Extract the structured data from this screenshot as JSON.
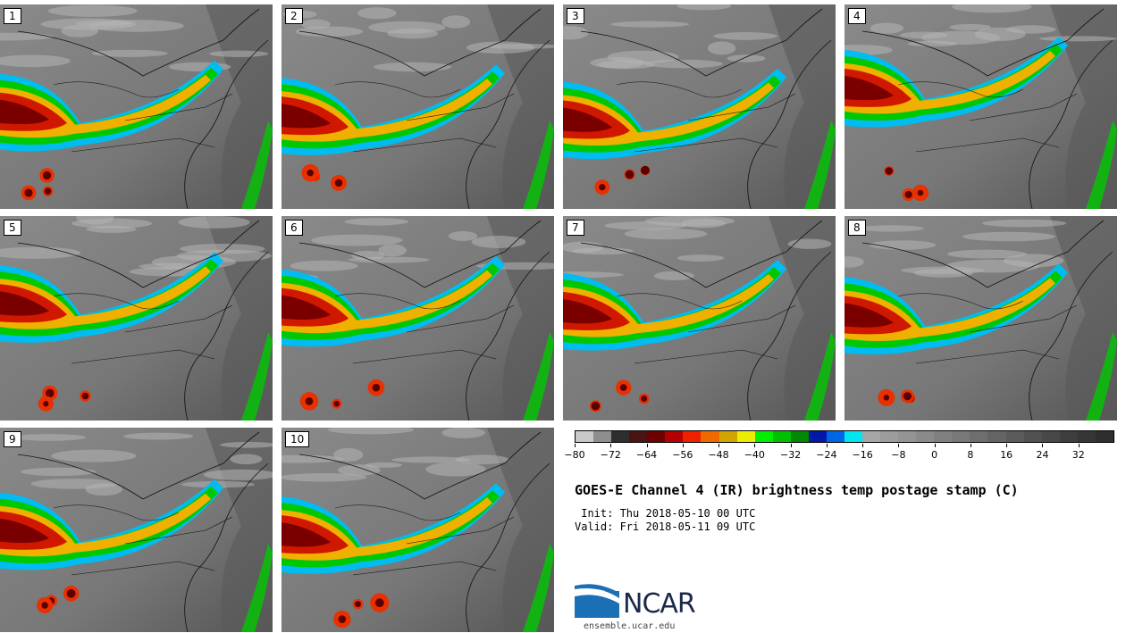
{
  "panels": [
    {
      "label": "1"
    },
    {
      "label": "2"
    },
    {
      "label": "3"
    },
    {
      "label": "4"
    },
    {
      "label": "5"
    },
    {
      "label": "6"
    },
    {
      "label": "7"
    },
    {
      "label": "8"
    },
    {
      "label": "9"
    },
    {
      "label": "10"
    }
  ],
  "colorbar": {
    "colors": [
      "#c8c8c8",
      "#8e8e8e",
      "#2e2e2e",
      "#4a1414",
      "#6e0000",
      "#b40000",
      "#ee2000",
      "#ee6a00",
      "#d2a400",
      "#ecec00",
      "#00ee00",
      "#00be00",
      "#008800",
      "#0018a8",
      "#0064e6",
      "#00e6f0",
      "#a6a6a6",
      "#9c9c9c",
      "#949494",
      "#8a8a8a",
      "#808080",
      "#787878",
      "#6e6e6e",
      "#646464",
      "#5a5a5a",
      "#505050",
      "#484848",
      "#3e3e3e",
      "#363636",
      "#2e2e2e"
    ],
    "ticks": [
      "−80",
      "−72",
      "−64",
      "−56",
      "−48",
      "−40",
      "−32",
      "−24",
      "−16",
      "−8",
      "0",
      "8",
      "16",
      "24",
      "32"
    ]
  },
  "title": "GOES-E Channel 4 (IR) brightness temp postage stamp (C)",
  "init": " Init: Thu 2018-05-10 00 UTC",
  "valid": "Valid: Fri 2018-05-11 09 UTC",
  "logo": {
    "text": "NCAR",
    "site": "ensemble.ucar.edu",
    "colors": {
      "blue": "#1a6fb5",
      "dark": "#1b2a4a"
    }
  }
}
